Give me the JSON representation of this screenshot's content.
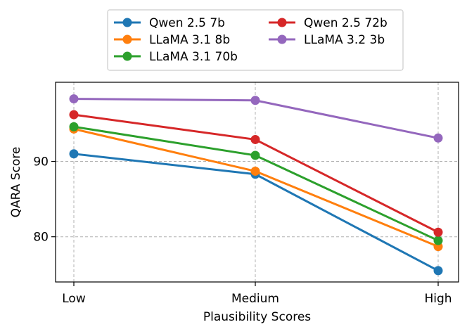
{
  "chart_data": {
    "type": "line",
    "title": "",
    "xlabel": "Plausibility Scores",
    "ylabel": "QARA Score",
    "categories": [
      "Low",
      "Medium",
      "High"
    ],
    "ylim": [
      74,
      100.5
    ],
    "yticks": [
      80,
      90
    ],
    "grid": true,
    "legend": {
      "position": "top-center-outside",
      "columns": 2
    },
    "series": [
      {
        "name": "Qwen 2.5 7b",
        "color": "#1f77b4",
        "values": [
          91.0,
          88.3,
          75.5
        ]
      },
      {
        "name": "LLaMA 3.1 8b",
        "color": "#ff7f0e",
        "values": [
          94.3,
          88.7,
          78.7
        ]
      },
      {
        "name": "LLaMA 3.1 70b",
        "color": "#2ca02c",
        "values": [
          94.6,
          90.8,
          79.5
        ]
      },
      {
        "name": "Qwen 2.5 72b",
        "color": "#d62728",
        "values": [
          96.2,
          92.9,
          80.6
        ]
      },
      {
        "name": "LLaMA 3.2 3b",
        "color": "#9467bd",
        "values": [
          98.3,
          98.1,
          93.1
        ]
      }
    ]
  }
}
